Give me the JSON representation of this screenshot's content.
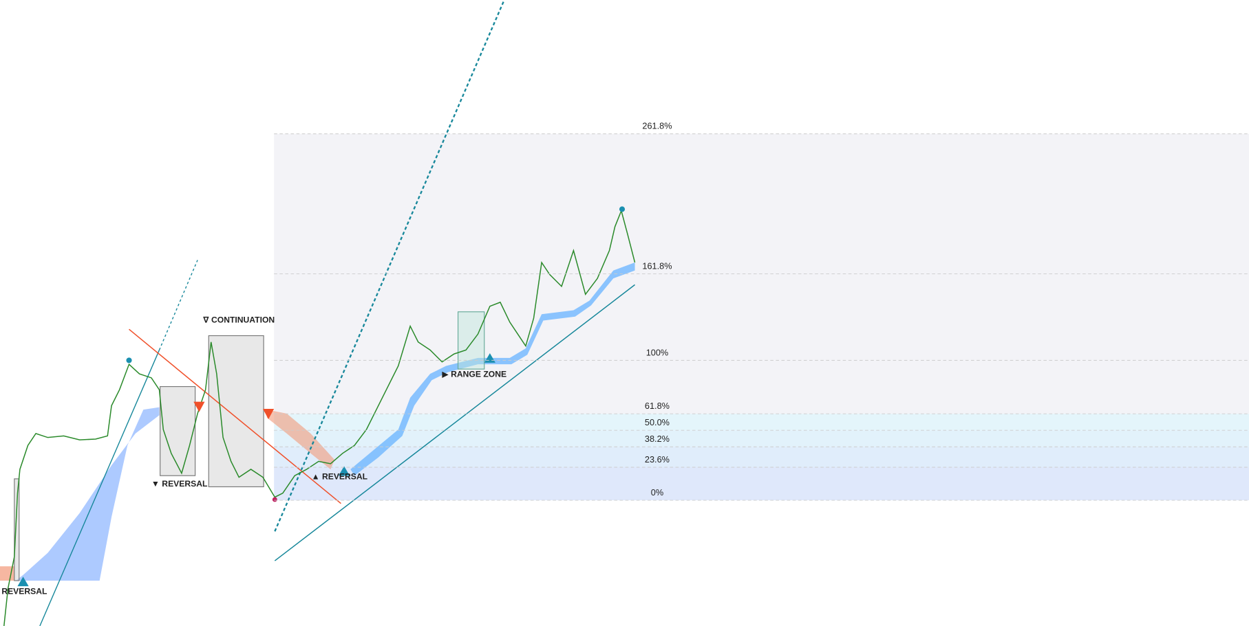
{
  "chart_data": {
    "type": "fibonacci",
    "ylim": [
      -89.8,
      357.4
    ],
    "yticks": [
      {
        "value": 261.8,
        "label": "261.8%"
      },
      {
        "value": 161.8,
        "label": "161.8%"
      },
      {
        "value": 100,
        "label": "100%"
      },
      {
        "value": 61.8,
        "label": "61.8%"
      },
      {
        "value": 50,
        "label": "50.0%"
      },
      {
        "value": 38.2,
        "label": "38.2%"
      },
      {
        "value": 23.6,
        "label": "23.6%"
      },
      {
        "value": 0,
        "label": "0%"
      }
    ],
    "annotations": [
      "REVERSAL",
      "▼ REVERSAL",
      "∇ CONTINUATION",
      "▲ REVERSAL",
      "▶ RANGE ZONE"
    ]
  }
}
